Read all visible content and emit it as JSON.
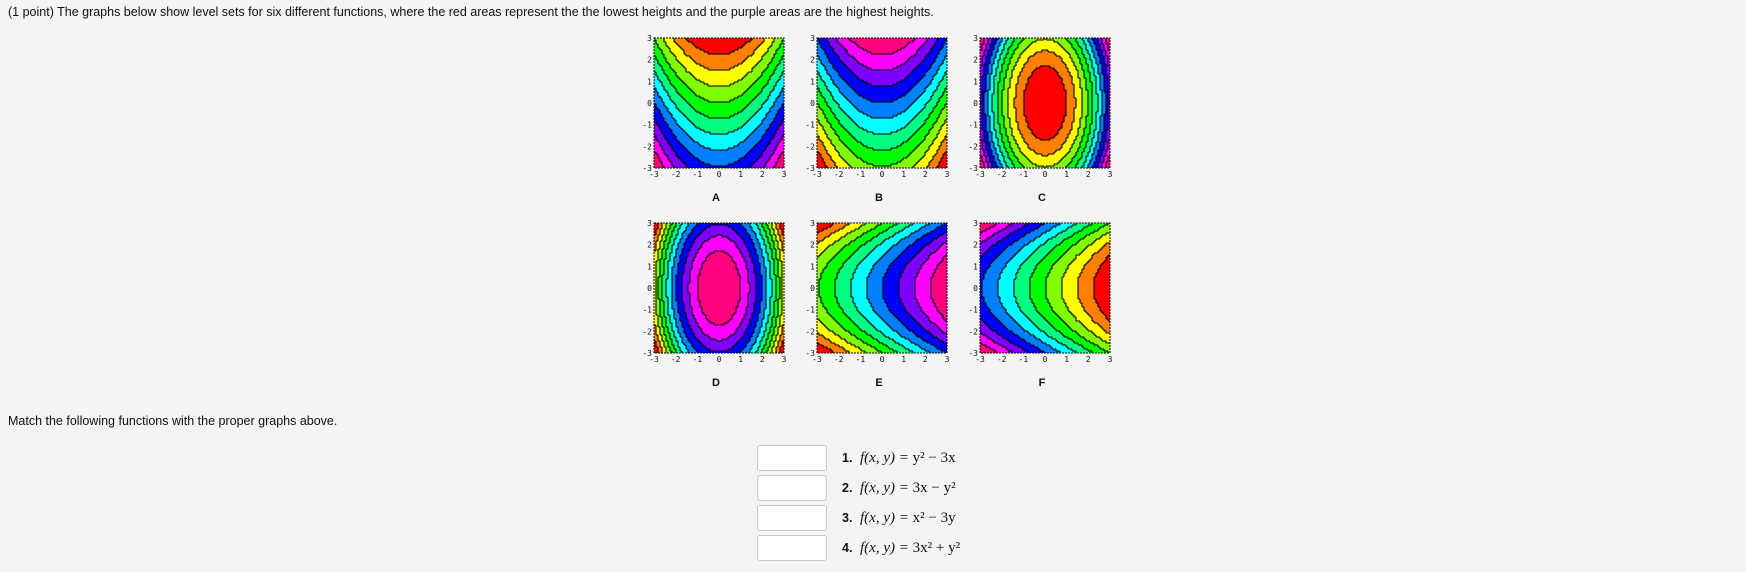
{
  "question": {
    "prompt": "(1 point) The graphs below show level sets for six different functions, where the red areas represent the the lowest heights and the purple areas are the highest heights.",
    "match_prompt": "Match the following functions with the proper graphs above."
  },
  "axis_ticks": [
    "-3",
    "-2",
    "-1",
    "0",
    "1",
    "2",
    "3"
  ],
  "axis_range": [
    -3,
    3
  ],
  "color_scale_low_to_high": [
    "#ff0000",
    "#ff8000",
    "#ffff00",
    "#80ff00",
    "#00ff00",
    "#00ff80",
    "#00ffff",
    "#0080ff",
    "#0000ff",
    "#8000ff",
    "#ff00ff",
    "#ff0080"
  ],
  "graphs": [
    {
      "letter": "A",
      "shape": "parabolic-up"
    },
    {
      "letter": "B",
      "shape": "parabolic-up-reversed"
    },
    {
      "letter": "C",
      "shape": "elliptical-min-center"
    },
    {
      "letter": "D",
      "shape": "elliptical-max-center"
    },
    {
      "letter": "E",
      "shape": "parabolic-right"
    },
    {
      "letter": "F",
      "shape": "parabolic-right-reversed"
    }
  ],
  "functions": [
    {
      "number": "1.",
      "lhs": "f(x, y) = ",
      "expr": "y² − 3x"
    },
    {
      "number": "2.",
      "lhs": "f(x, y) = ",
      "expr": "3x − y²"
    },
    {
      "number": "3.",
      "lhs": "f(x, y) = ",
      "expr": "x² − 3y"
    },
    {
      "number": "4.",
      "lhs": "f(x, y) = ",
      "expr": "3x² + y²"
    }
  ],
  "answers": [
    "",
    "",
    "",
    ""
  ]
}
